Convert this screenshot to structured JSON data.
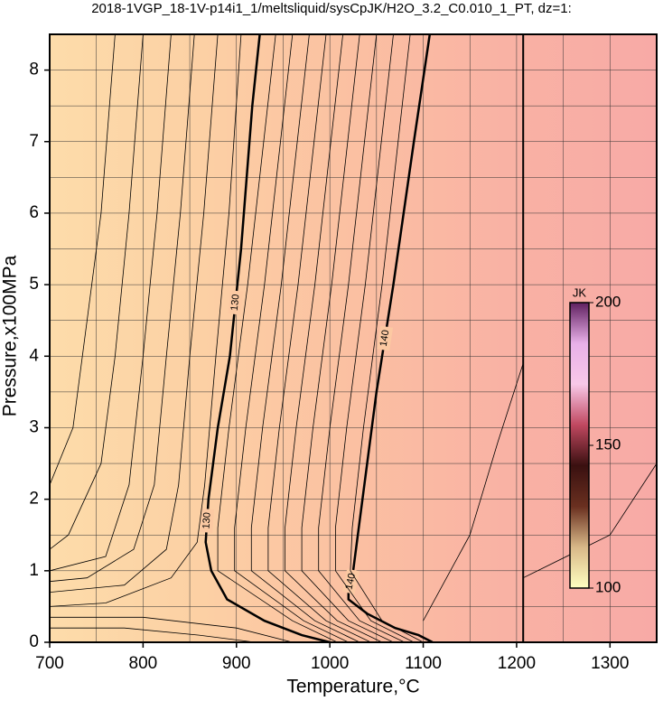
{
  "chart_data": {
    "type": "contour",
    "title": "2018-1VGP_18-1V-p14i1_1/meltsliquid/sysCpJK/H2O_3.2_C0.010_1_PT, dz=1:",
    "x_label": "Temperature,°C",
    "y_label": "Pressure,x100MPa",
    "xlim": [
      700,
      1350
    ],
    "ylim": [
      0,
      8.5
    ],
    "xticks": [
      700,
      800,
      900,
      1000,
      1100,
      1200,
      1300
    ],
    "yticks": [
      0,
      1,
      2,
      3,
      4,
      5,
      6,
      7,
      8
    ],
    "xgrid": [
      750,
      800,
      850,
      900,
      950,
      1000,
      1050,
      1100,
      1150,
      1200,
      1250,
      1300
    ],
    "ygrid": [
      0.5,
      1,
      1.5,
      2,
      2.5,
      3,
      3.5,
      4,
      4.5,
      5,
      5.5,
      6,
      6.5,
      7,
      7.5,
      8
    ],
    "fill_colors": [
      "#fddcaa",
      "#fcd0a4",
      "#fbc0a2",
      "#f9b2a4",
      "#f8aaa6"
    ],
    "series": [
      {
        "name": "130",
        "bold": true,
        "x": [
          925,
          917,
          905,
          893,
          880,
          870,
          867,
          873,
          890,
          930,
          970,
          1000
        ],
        "y": [
          8.5,
          7.5,
          5.5,
          4,
          3,
          2,
          1.4,
          1,
          0.6,
          0.3,
          0.1,
          0
        ]
      },
      {
        "name": "140",
        "bold": true,
        "x": [
          1107,
          1090,
          1068,
          1050,
          1035,
          1025,
          1020,
          1020,
          1040,
          1070,
          1095,
          1107,
          1110
        ],
        "y": [
          8.5,
          7,
          5,
          3.5,
          2,
          1,
          0.7,
          0.6,
          0.4,
          0.2,
          0.1,
          0.02,
          0
        ]
      },
      {
        "bold": false,
        "x": [
          1207,
          1207
        ],
        "y": [
          0,
          8.5
        ]
      },
      {
        "bold": false,
        "x": [
          770,
          755,
          740,
          725,
          700
        ],
        "y": [
          8.5,
          6,
          4.5,
          3,
          2.2
        ]
      },
      {
        "bold": false,
        "x": [
          800,
          785,
          770,
          755,
          720,
          700
        ],
        "y": [
          8.5,
          6,
          4,
          2.5,
          1.5,
          1.3
        ]
      },
      {
        "bold": false,
        "x": [
          830,
          815,
          800,
          785,
          760,
          700
        ],
        "y": [
          8.5,
          6,
          4,
          2.2,
          1.2,
          1
        ]
      },
      {
        "bold": false,
        "x": [
          855,
          840,
          825,
          812,
          790,
          740,
          700
        ],
        "y": [
          8.5,
          6,
          4,
          2.2,
          1.3,
          0.9,
          0.85
        ]
      },
      {
        "bold": false,
        "x": [
          880,
          865,
          850,
          838,
          825,
          780,
          700
        ],
        "y": [
          8.5,
          6,
          4,
          2.2,
          1.3,
          0.8,
          0.7
        ]
      },
      {
        "bold": false,
        "x": [
          905,
          892,
          878,
          866,
          858,
          830,
          760,
          700
        ],
        "y": [
          8.5,
          6,
          4,
          2.2,
          1.4,
          0.9,
          0.55,
          0.5
        ]
      },
      {
        "bold": false,
        "x": [
          700,
          800,
          900,
          960
        ],
        "y": [
          0.35,
          0.35,
          0.2,
          0
        ]
      },
      {
        "bold": false,
        "x": [
          700,
          780,
          860,
          920
        ],
        "y": [
          0.2,
          0.2,
          0.1,
          0
        ]
      },
      {
        "bold": false,
        "x": [
          942,
          912,
          892,
          880,
          880,
          960,
          1008
        ],
        "y": [
          8.5,
          5,
          3,
          1.6,
          1,
          0.3,
          0
        ]
      },
      {
        "bold": false,
        "x": [
          960,
          930,
          910,
          898,
          898,
          972,
          1020
        ],
        "y": [
          8.5,
          5,
          3,
          1.6,
          1,
          0.3,
          0
        ]
      },
      {
        "bold": false,
        "x": [
          978,
          948,
          928,
          916,
          916,
          984,
          1032
        ],
        "y": [
          8.5,
          5,
          3,
          1.6,
          1,
          0.3,
          0
        ]
      },
      {
        "bold": false,
        "x": [
          996,
          966,
          946,
          934,
          934,
          996,
          1044
        ],
        "y": [
          8.5,
          5,
          3,
          1.6,
          1,
          0.3,
          0
        ]
      },
      {
        "bold": false,
        "x": [
          1014,
          984,
          964,
          952,
          952,
          1008,
          1056
        ],
        "y": [
          8.5,
          5,
          3,
          1.6,
          1,
          0.3,
          0
        ]
      },
      {
        "bold": false,
        "x": [
          1032,
          1002,
          982,
          970,
          970,
          1020,
          1068
        ],
        "y": [
          8.5,
          5,
          3,
          1.6,
          1,
          0.3,
          0
        ]
      },
      {
        "bold": false,
        "x": [
          1050,
          1020,
          1000,
          988,
          988,
          1032,
          1080
        ],
        "y": [
          8.5,
          5,
          3,
          1.6,
          1,
          0.3,
          0
        ]
      },
      {
        "bold": false,
        "x": [
          1068,
          1038,
          1018,
          1006,
          1006,
          1044,
          1090
        ],
        "y": [
          8.5,
          5,
          3,
          1.6,
          1,
          0.3,
          0
        ]
      },
      {
        "bold": false,
        "x": [
          1086,
          1056,
          1036,
          1024,
          1022,
          1056,
          1100
        ],
        "y": [
          8.5,
          5,
          3,
          1.6,
          1,
          0.3,
          0
        ]
      },
      {
        "bold": false,
        "x": [
          1100,
          1150,
          1180,
          1207
        ],
        "y": [
          0.3,
          1.5,
          2.8,
          3.9
        ]
      },
      {
        "bold": false,
        "x": [
          1207,
          1300,
          1350
        ],
        "y": [
          0.9,
          1.5,
          2.5
        ]
      }
    ],
    "colorbar": {
      "label": "JK",
      "lim": [
        100,
        200
      ],
      "ticks": [
        100,
        150,
        200
      ],
      "colors": [
        "#ffffc0",
        "#d8b888",
        "#6a3020",
        "#3a1010",
        "#c04860",
        "#f8c8e8",
        "#e8b0e8",
        "#602060"
      ]
    }
  }
}
